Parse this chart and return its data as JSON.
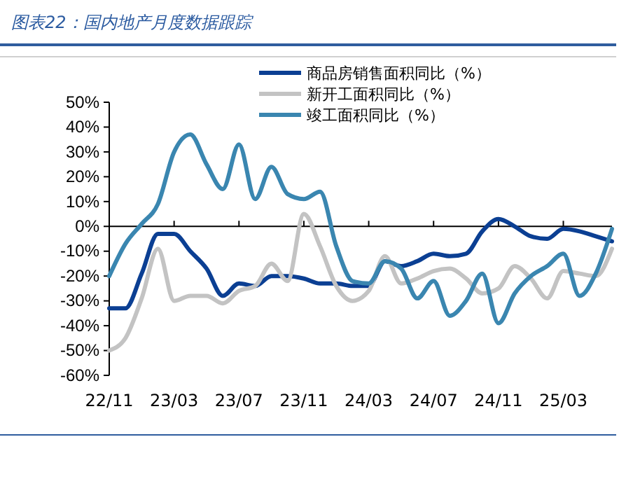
{
  "chart_data": {
    "type": "line",
    "title": "图表22：国内地产月度数据跟踪",
    "categories": [
      "22/11",
      null,
      null,
      null,
      "23/03",
      null,
      null,
      null,
      "23/07",
      null,
      null,
      null,
      "23/11",
      null,
      null,
      null,
      "24/03",
      null,
      null,
      null,
      "24/07",
      null,
      null,
      null,
      "24/11",
      null,
      null,
      null,
      "25/03",
      null,
      null,
      null
    ],
    "series": [
      {
        "name": "商品房销售面积同比（%）",
        "color": "#0b3f93",
        "values": [
          -33,
          -33,
          -19,
          -3,
          -3,
          -10,
          -17,
          -28,
          -23,
          -24,
          -20,
          -20,
          -21,
          -23,
          -23,
          -24,
          -24,
          -14,
          -16,
          -14,
          -11,
          -12,
          -11,
          -2,
          3,
          0,
          -4,
          -5,
          -1,
          -2,
          -4,
          -6
        ]
      },
      {
        "name": "新开工面积同比（%）",
        "color": "#c3c3c3",
        "values": [
          -50,
          -45,
          -29,
          -9,
          -30,
          -28,
          -28,
          -31,
          -26,
          -24,
          -15,
          -22,
          5,
          -8,
          -24,
          -30,
          -26,
          -12,
          -23,
          -21,
          -18,
          -17,
          -21,
          -27,
          -25,
          -16,
          -21,
          -29,
          -18,
          -19,
          -20,
          -9
        ]
      },
      {
        "name": "竣工面积同比（%）",
        "color": "#3a86b0",
        "values": [
          -20,
          -7,
          1,
          9,
          30,
          37,
          25,
          15,
          33,
          11,
          24,
          13,
          11,
          14,
          -8,
          -22,
          -23,
          -14,
          -17,
          -29,
          -22,
          -36,
          -30,
          -19,
          -39,
          -27,
          -20,
          -16,
          -11,
          -28,
          -19,
          -1
        ]
      }
    ],
    "ylim": [
      -60,
      50
    ],
    "yticks": [
      {
        "value": -60,
        "label": "-60%"
      },
      {
        "value": -50,
        "label": "-50%"
      },
      {
        "value": -40,
        "label": "-40%"
      },
      {
        "value": -30,
        "label": "-30%"
      },
      {
        "value": -20,
        "label": "-20%"
      },
      {
        "value": -10,
        "label": "-10%"
      },
      {
        "value": 0,
        "label": "0%"
      },
      {
        "value": 10,
        "label": "10%"
      },
      {
        "value": 20,
        "label": "20%"
      },
      {
        "value": 30,
        "label": "30%"
      },
      {
        "value": 40,
        "label": "40%"
      },
      {
        "value": 50,
        "label": "50%"
      }
    ],
    "legend": "top right",
    "marker": "none",
    "line_style": "solid"
  }
}
